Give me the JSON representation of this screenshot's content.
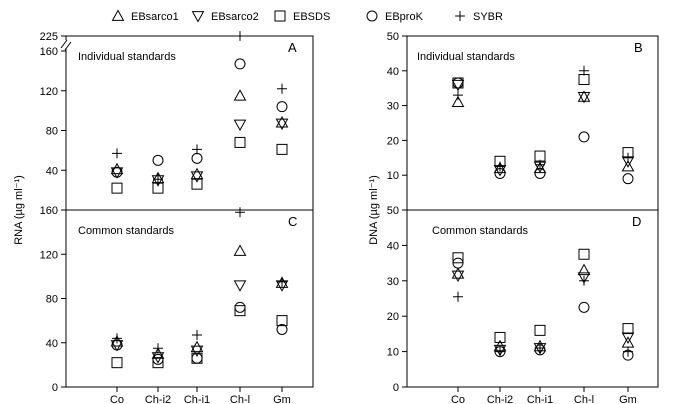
{
  "chart_data": {
    "type": "scatter",
    "categories": [
      "Co",
      "Ch-i2",
      "Ch-i1",
      "Ch-l",
      "Gm"
    ],
    "legend": [
      "EBsarco1",
      "EBsarco2",
      "EBSDS",
      "EBproK",
      "SYBR"
    ],
    "panels": [
      {
        "id": "A",
        "title": "Individual  standards",
        "ylabel": "RNA (µg ml⁻¹)",
        "ylim": [
          0,
          225
        ],
        "yticks": [
          40,
          80,
          120,
          160,
          225
        ],
        "broken_axis": {
          "break_from": 160,
          "break_to": 225
        },
        "series": [
          {
            "name": "EBsarco1",
            "values": [
              41,
              32,
              36,
              115,
              88
            ]
          },
          {
            "name": "EBsarco2",
            "values": [
              38,
              30,
              34,
              86,
              87
            ]
          },
          {
            "name": "EBSDS",
            "values": [
              22,
              22,
              26,
              68,
              61
            ]
          },
          {
            "name": "EBproK",
            "values": [
              38,
              50,
              52,
              147,
              104
            ]
          },
          {
            "name": "SYBR",
            "values": [
              57,
              31,
              61,
              225,
              122
            ]
          }
        ]
      },
      {
        "id": "C",
        "title": "Common standards",
        "ylabel": "RNA (µg ml⁻¹)",
        "ylim": [
          0,
          160
        ],
        "yticks": [
          0,
          40,
          80,
          120,
          160
        ],
        "series": [
          {
            "name": "EBsarco1",
            "values": [
              41,
              30,
              36,
              123,
              94
            ]
          },
          {
            "name": "EBsarco2",
            "values": [
              38,
              27,
              33,
              92,
              92
            ]
          },
          {
            "name": "EBSDS",
            "values": [
              22,
              22,
              26,
              69,
              60
            ]
          },
          {
            "name": "EBproK",
            "values": [
              38,
              25,
              26,
              72,
              52
            ]
          },
          {
            "name": "SYBR",
            "values": [
              44,
              35,
              47,
              158,
              95
            ]
          }
        ]
      },
      {
        "id": "B",
        "title": "Individual standards",
        "ylabel": "DNA (µg ml⁻¹)",
        "ylim": [
          0,
          50
        ],
        "yticks": [
          10,
          20,
          30,
          40,
          50
        ],
        "series": [
          {
            "name": "EBsarco1",
            "values": [
              31,
              12,
              12,
              32.5,
              12.5
            ]
          },
          {
            "name": "EBsarco2",
            "values": [
              36,
              11.5,
              12.5,
              32.5,
              14
            ]
          },
          {
            "name": "EBSDS",
            "values": [
              36.5,
              14,
              15.5,
              37.5,
              16.5
            ]
          },
          {
            "name": "EBproK",
            "values": [
              36.5,
              10.5,
              10.5,
              21,
              9
            ]
          },
          {
            "name": "SYBR",
            "values": [
              33,
              12.5,
              13,
              40,
              15
            ]
          }
        ]
      },
      {
        "id": "D",
        "title": "Common standards",
        "ylabel": "DNA (µg ml⁻¹)",
        "ylim": [
          0,
          50
        ],
        "yticks": [
          0,
          10,
          20,
          30,
          40,
          50
        ],
        "series": [
          {
            "name": "EBsarco1",
            "values": [
              32,
              11.5,
              11.5,
              33,
              12.5
            ]
          },
          {
            "name": "EBsarco2",
            "values": [
              31.5,
              10.5,
              11,
              31,
              14
            ]
          },
          {
            "name": "EBSDS",
            "values": [
              36.5,
              14,
              16,
              37.5,
              16.5
            ]
          },
          {
            "name": "EBproK",
            "values": [
              35,
              10,
              10.5,
              22.5,
              9
            ]
          },
          {
            "name": "SYBR",
            "values": [
              25.5,
              10,
              11,
              30,
              10
            ]
          }
        ]
      }
    ],
    "axis_break_marker": "//"
  }
}
